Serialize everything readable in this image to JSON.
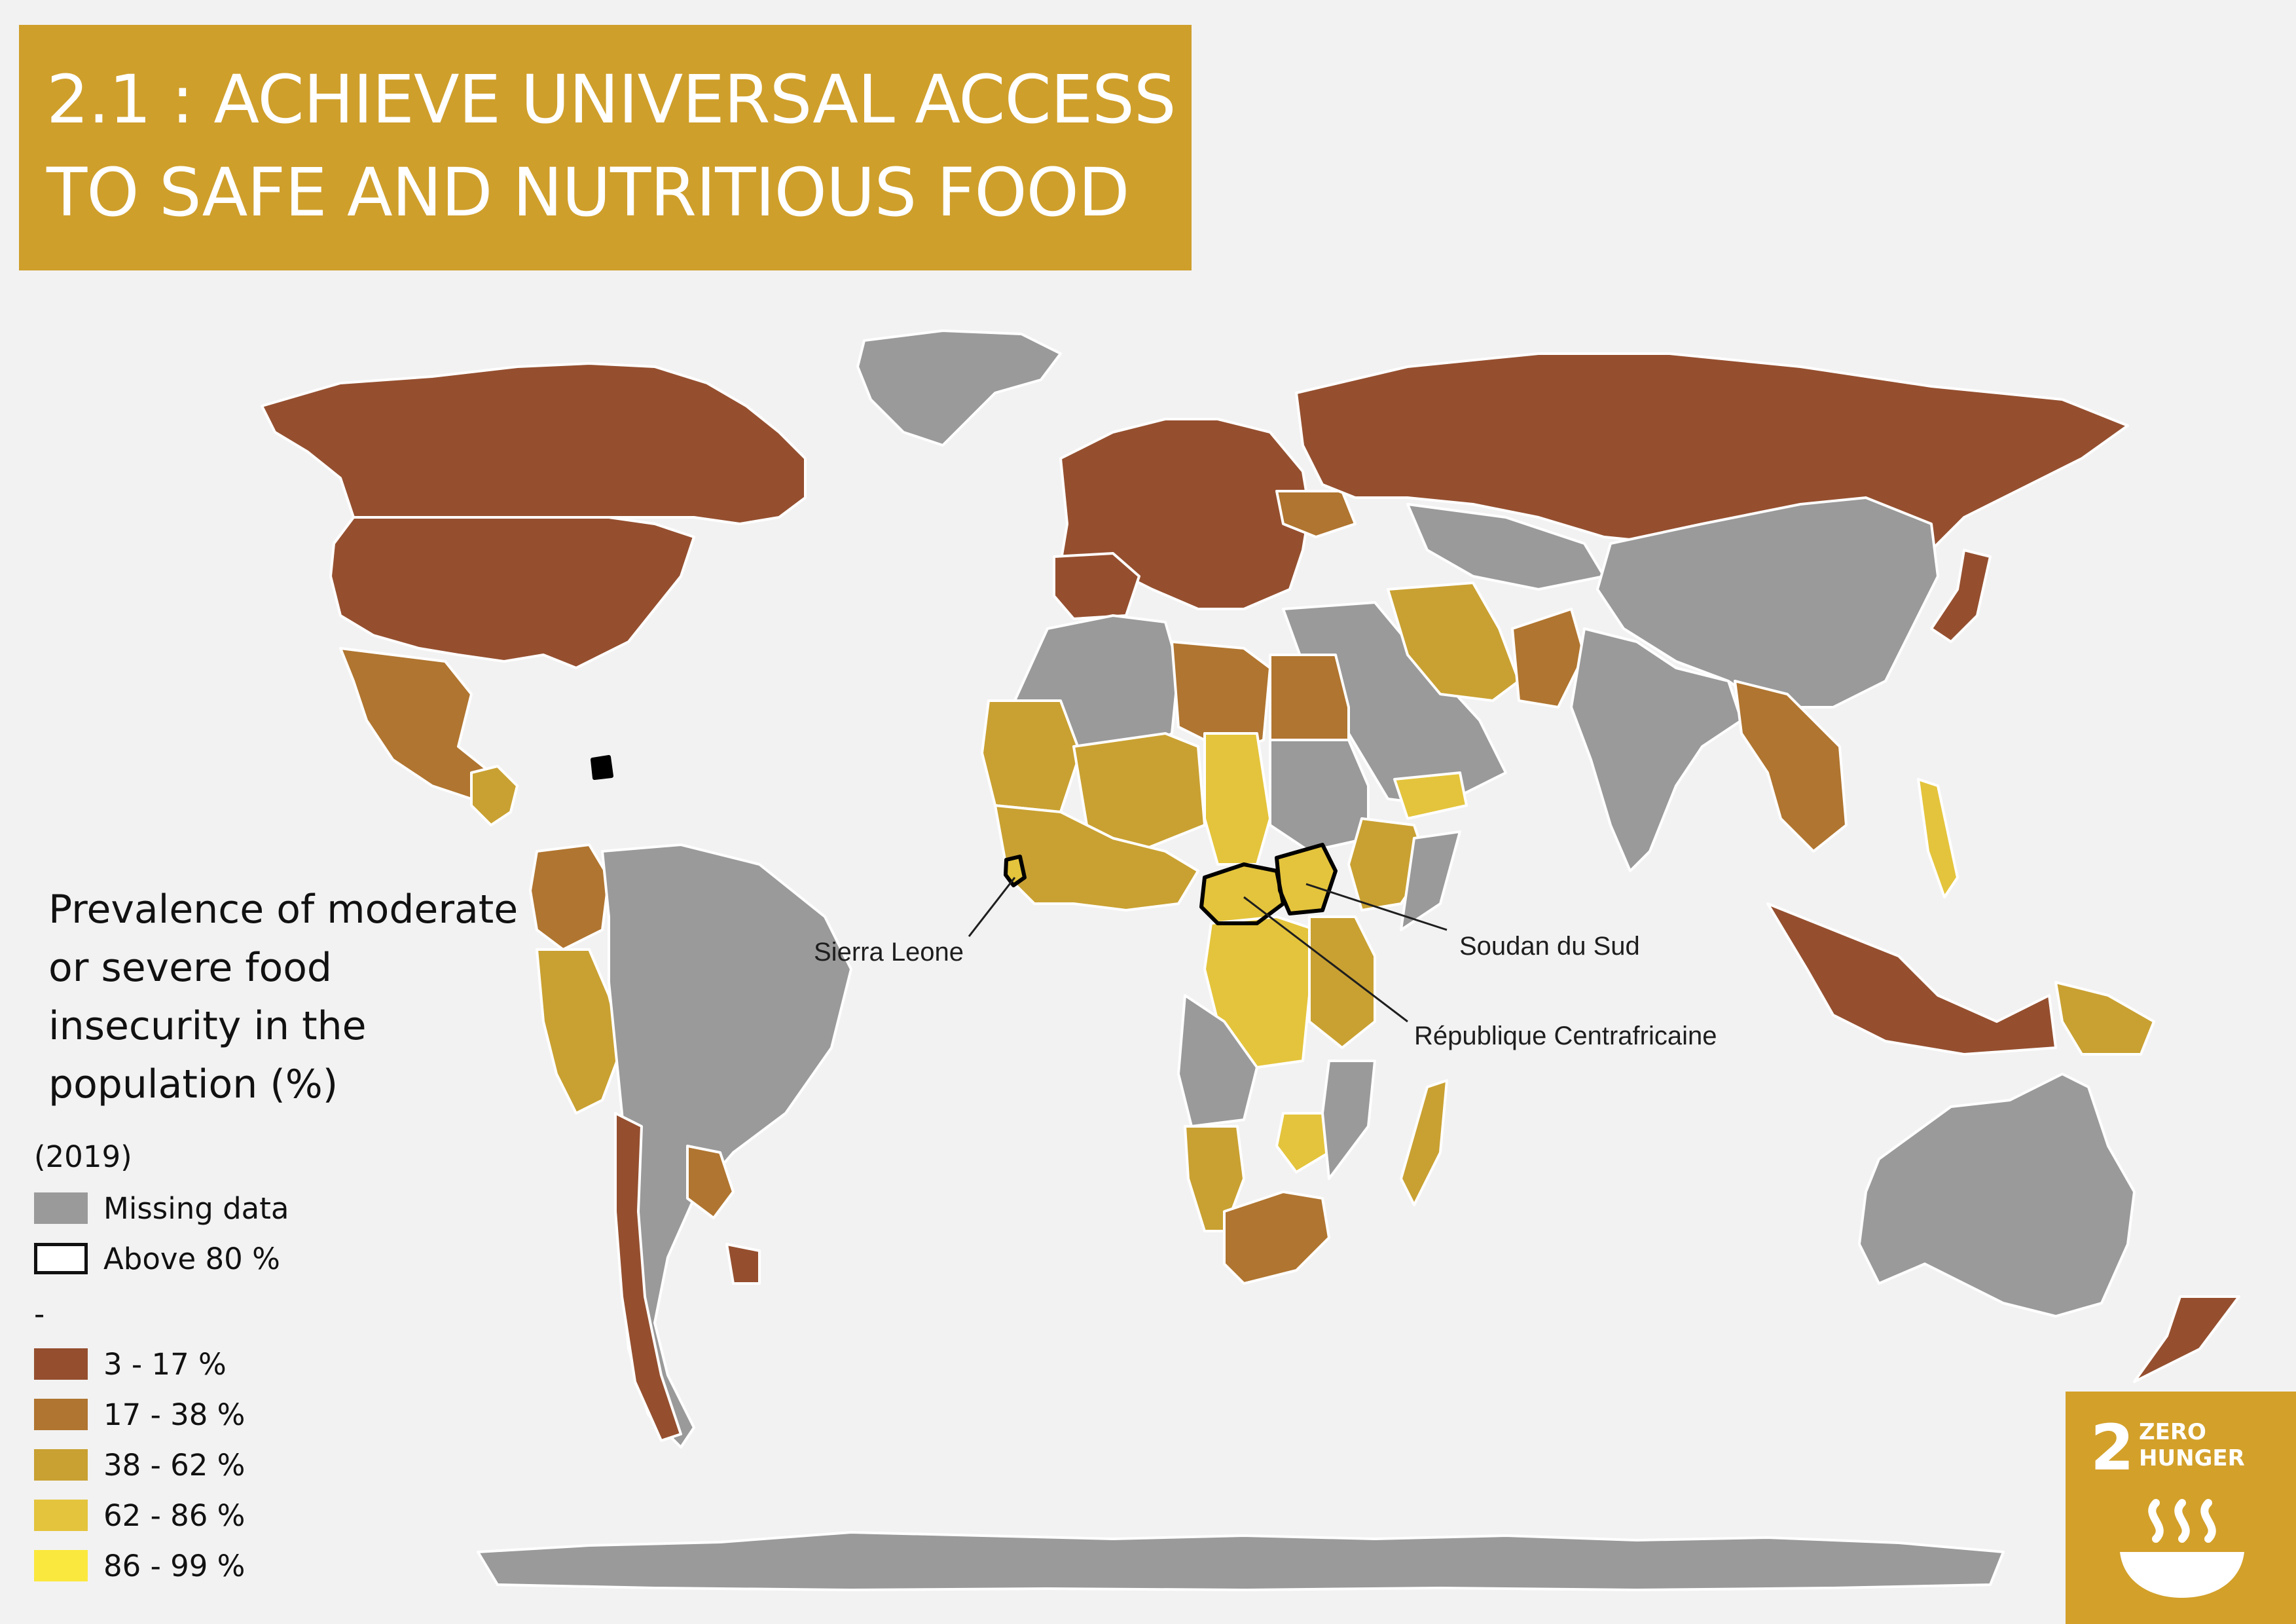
{
  "title": {
    "line1": "2.1 : ACHIEVE UNIVERSAL ACCESS",
    "line2": "TO SAFE AND NUTRITIOUS FOOD"
  },
  "legend": {
    "title_lines": [
      "Prevalence of moderate",
      "or severe food",
      "insecurity in the",
      "population (%)"
    ],
    "year": "(2019)",
    "missing_label": "Missing data",
    "above_label": "Above 80 %",
    "dash": "-",
    "classes": [
      {
        "label": "3 - 17 %",
        "color": "#954f2f"
      },
      {
        "label": "17 - 38 %",
        "color": "#b07530"
      },
      {
        "label": "38 - 62 %",
        "color": "#c9a132"
      },
      {
        "label": "62 - 86 %",
        "color": "#e4c43c"
      },
      {
        "label": "86 - 99 %",
        "color": "#fbe83e"
      }
    ],
    "missing_color": "#9a9a9a"
  },
  "callouts": {
    "sierra_leone": "Sierra Leone",
    "south_sudan": "Soudan du Sud",
    "car": "République Centrafricaine"
  },
  "badge": {
    "number": "2",
    "line1": "ZERO",
    "line2": "HUNGER",
    "bowl_icon": "soup-bowl-icon",
    "color": "#d3a029"
  },
  "map_regions": [
    {
      "name": "Canada",
      "class": "3 - 17 %"
    },
    {
      "name": "United States",
      "class": "3 - 17 %"
    },
    {
      "name": "Mexico",
      "class": "17 - 38 %"
    },
    {
      "name": "Central America",
      "class": "38 - 62 %"
    },
    {
      "name": "Haiti",
      "class": "Above 80 %"
    },
    {
      "name": "Colombia",
      "class": "17 - 38 %"
    },
    {
      "name": "Ecuador",
      "class": "17 - 38 %"
    },
    {
      "name": "Peru",
      "class": "38 - 62 %"
    },
    {
      "name": "Paraguay",
      "class": "17 - 38 %"
    },
    {
      "name": "Chile",
      "class": "3 - 17 %"
    },
    {
      "name": "Uruguay",
      "class": "3 - 17 %"
    },
    {
      "name": "Brazil",
      "class": "Missing data"
    },
    {
      "name": "Argentina",
      "class": "Missing data"
    },
    {
      "name": "Greenland",
      "class": "Missing data"
    },
    {
      "name": "Europe",
      "class": "3 - 17 %"
    },
    {
      "name": "Ukraine",
      "class": "17 - 38 %"
    },
    {
      "name": "Russia",
      "class": "3 - 17 %"
    },
    {
      "name": "Kazakhstan",
      "class": "Missing data"
    },
    {
      "name": "China",
      "class": "Missing data"
    },
    {
      "name": "Mongolia",
      "class": "Missing data"
    },
    {
      "name": "Japan",
      "class": "3 - 17 %"
    },
    {
      "name": "Iran",
      "class": "38 - 62 %"
    },
    {
      "name": "Pakistan",
      "class": "17 - 38 %"
    },
    {
      "name": "India",
      "class": "Missing data"
    },
    {
      "name": "Myanmar",
      "class": "17 - 38 %"
    },
    {
      "name": "Thailand",
      "class": "17 - 38 %"
    },
    {
      "name": "Philippines",
      "class": "62 - 86 %"
    },
    {
      "name": "Indonesia",
      "class": "3 - 17 %"
    },
    {
      "name": "Papua New Guinea",
      "class": "38 - 62 %"
    },
    {
      "name": "Australia",
      "class": "Missing data"
    },
    {
      "name": "New Zealand",
      "class": "3 - 17 %"
    },
    {
      "name": "Antarctica",
      "class": "Missing data"
    },
    {
      "name": "Libya",
      "class": "17 - 38 %"
    },
    {
      "name": "Egypt",
      "class": "17 - 38 %"
    },
    {
      "name": "Algeria",
      "class": "Missing data"
    },
    {
      "name": "Mali",
      "class": "38 - 62 %"
    },
    {
      "name": "Niger",
      "class": "38 - 62 %"
    },
    {
      "name": "Chad",
      "class": "62 - 86 %"
    },
    {
      "name": "Sudan",
      "class": "Missing data"
    },
    {
      "name": "Ethiopia",
      "class": "38 - 62 %"
    },
    {
      "name": "Yemen",
      "class": "62 - 86 %"
    },
    {
      "name": "Sierra Leone",
      "class": "Above 80 %"
    },
    {
      "name": "South Sudan",
      "class": "Above 80 %"
    },
    {
      "name": "Central African Republic",
      "class": "Above 80 %"
    },
    {
      "name": "DR Congo",
      "class": "62 - 86 %"
    },
    {
      "name": "Tanzania",
      "class": "38 - 62 %"
    },
    {
      "name": "Angola",
      "class": "Missing data"
    },
    {
      "name": "Namibia",
      "class": "38 - 62 %"
    },
    {
      "name": "Zimbabwe",
      "class": "62 - 86 %"
    },
    {
      "name": "South Africa",
      "class": "17 - 38 %"
    },
    {
      "name": "Madagascar",
      "class": "38 - 62 %"
    }
  ]
}
